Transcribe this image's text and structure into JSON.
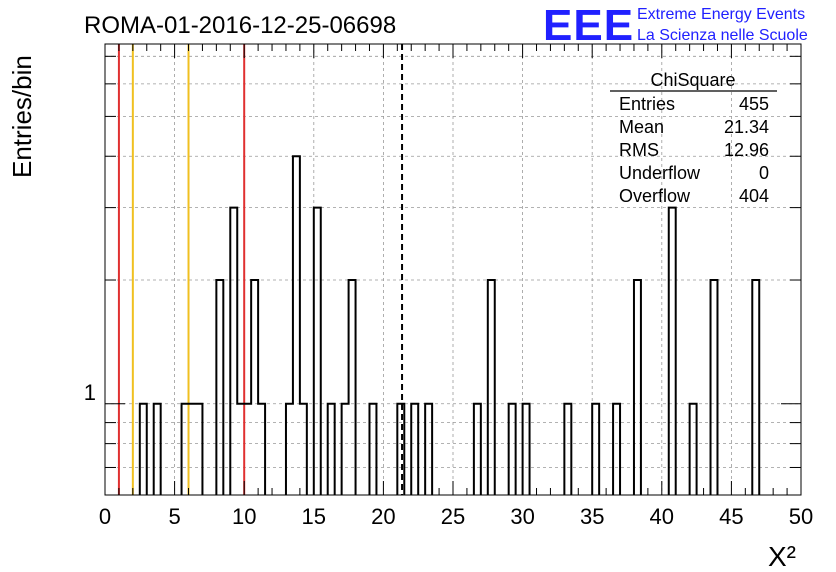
{
  "chart_data": {
    "type": "bar",
    "title": "ROMA-01-2016-12-25-06698",
    "xlabel": "X²",
    "ylabel": "Entries/bin",
    "xlim": [
      0,
      50
    ],
    "y_scale": "log",
    "ylim": [
      0.6,
      7.5
    ],
    "x_ticks": [
      "0",
      "5",
      "10",
      "15",
      "20",
      "25",
      "30",
      "35",
      "40",
      "45",
      "50"
    ],
    "y_tick_label": "1",
    "bin_width": 0.5,
    "bins": [
      {
        "x0": 2.5,
        "y": 1
      },
      {
        "x0": 3.5,
        "y": 1
      },
      {
        "x0": 5.5,
        "y": 1
      },
      {
        "x0": 6.0,
        "y": 1
      },
      {
        "x0": 6.5,
        "y": 1
      },
      {
        "x0": 8.0,
        "y": 2
      },
      {
        "x0": 9.0,
        "y": 3
      },
      {
        "x0": 9.5,
        "y": 1
      },
      {
        "x0": 10.0,
        "y": 1
      },
      {
        "x0": 10.5,
        "y": 2
      },
      {
        "x0": 11.0,
        "y": 1
      },
      {
        "x0": 13.0,
        "y": 1
      },
      {
        "x0": 13.5,
        "y": 4
      },
      {
        "x0": 14.0,
        "y": 1
      },
      {
        "x0": 15.0,
        "y": 3
      },
      {
        "x0": 16.0,
        "y": 1
      },
      {
        "x0": 17.0,
        "y": 1
      },
      {
        "x0": 17.5,
        "y": 2
      },
      {
        "x0": 19.0,
        "y": 1
      },
      {
        "x0": 21.0,
        "y": 1
      },
      {
        "x0": 22.0,
        "y": 1
      },
      {
        "x0": 23.0,
        "y": 1
      },
      {
        "x0": 26.5,
        "y": 1
      },
      {
        "x0": 27.5,
        "y": 2
      },
      {
        "x0": 29.0,
        "y": 1
      },
      {
        "x0": 30.0,
        "y": 1
      },
      {
        "x0": 33.0,
        "y": 1
      },
      {
        "x0": 35.0,
        "y": 1
      },
      {
        "x0": 36.5,
        "y": 1
      },
      {
        "x0": 38.0,
        "y": 2
      },
      {
        "x0": 40.5,
        "y": 3
      },
      {
        "x0": 42.0,
        "y": 1
      },
      {
        "x0": 43.5,
        "y": 2
      },
      {
        "x0": 46.5,
        "y": 2
      }
    ],
    "vertical_lines": [
      {
        "x": 1,
        "color": "#e03030",
        "style": "solid"
      },
      {
        "x": 2,
        "color": "#f0c020",
        "style": "solid"
      },
      {
        "x": 6,
        "color": "#f0c020",
        "style": "solid"
      },
      {
        "x": 10,
        "color": "#e03030",
        "style": "solid"
      },
      {
        "x": 21.34,
        "color": "#000000",
        "style": "dashed"
      }
    ],
    "grid": true,
    "stats_box": {
      "title": "ChiSquare",
      "rows": [
        {
          "label": "Entries",
          "value": "455"
        },
        {
          "label": "Mean",
          "value": "21.34"
        },
        {
          "label": "RMS",
          "value": "12.96"
        },
        {
          "label": "Underflow",
          "value": "0"
        },
        {
          "label": "Overflow",
          "value": "404"
        }
      ]
    }
  },
  "logo": {
    "mark": "EEE",
    "line1": "Extreme Energy Events",
    "line2": "La Scienza nelle Scuole",
    "color": "#2020ff"
  }
}
